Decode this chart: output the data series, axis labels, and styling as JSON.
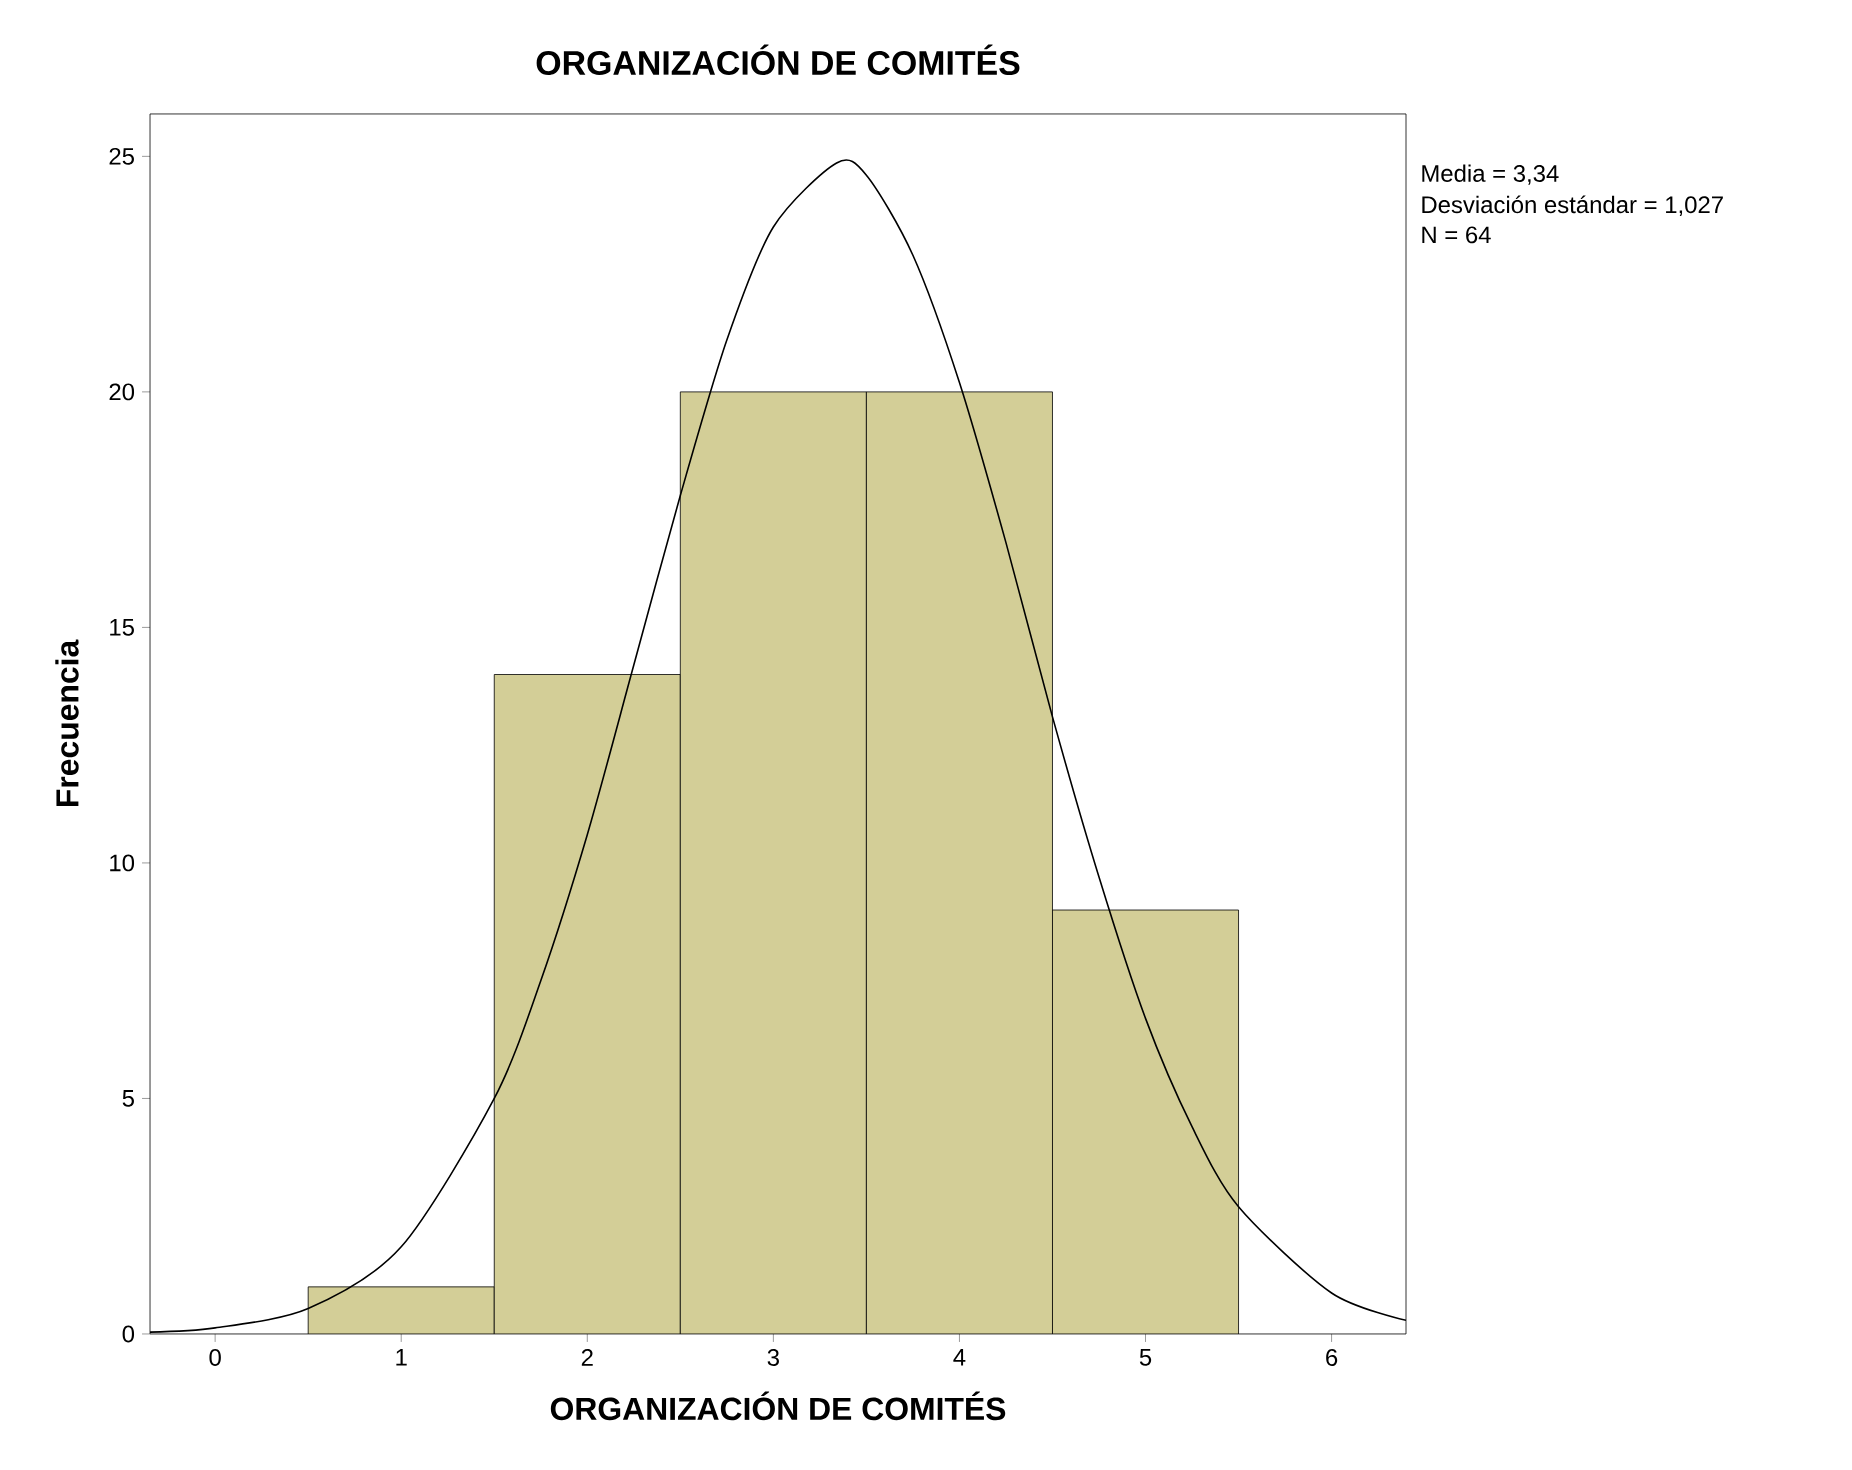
{
  "chart_data": {
    "type": "histogram",
    "title": "ORGANIZACIÓN DE COMITÉS",
    "xlabel": "ORGANIZACIÓN DE COMITÉS",
    "ylabel": "Frecuencia",
    "bins": [
      0.5,
      1.5,
      2.5,
      3.5,
      4.5,
      5.5
    ],
    "values": [
      1,
      14,
      20,
      20,
      9
    ],
    "color": "#d3ce97",
    "series": [
      {
        "type": "line",
        "color": "#000000",
        "marker": "none",
        "x": [
          -0.35,
          0,
          0.5,
          1,
          1.5,
          1.75,
          2,
          2.25,
          2.5,
          2.75,
          3,
          3.34,
          3.5,
          3.75,
          4,
          4.25,
          4.5,
          4.75,
          5,
          5.25,
          5.5,
          6,
          6.4
        ],
        "values": [
          0.04,
          0.13,
          0.54,
          1.85,
          5.0,
          7.5,
          10.6,
          14.2,
          17.8,
          21.1,
          23.5,
          24.86,
          24.6,
          22.9,
          20.2,
          16.8,
          13.1,
          9.7,
          6.7,
          4.4,
          2.7,
          0.87,
          0.29
        ]
      }
    ],
    "xlim": [
      -0.35,
      6.4
    ],
    "ylim": [
      0,
      25.9
    ],
    "xticks": [
      0,
      1,
      2,
      3,
      4,
      5,
      6
    ],
    "yticks": [
      0,
      5,
      10,
      15,
      20,
      25
    ],
    "annotations": [
      "Media = 3,34",
      "Desviación estándar = 1,027",
      "N = 64"
    ]
  }
}
